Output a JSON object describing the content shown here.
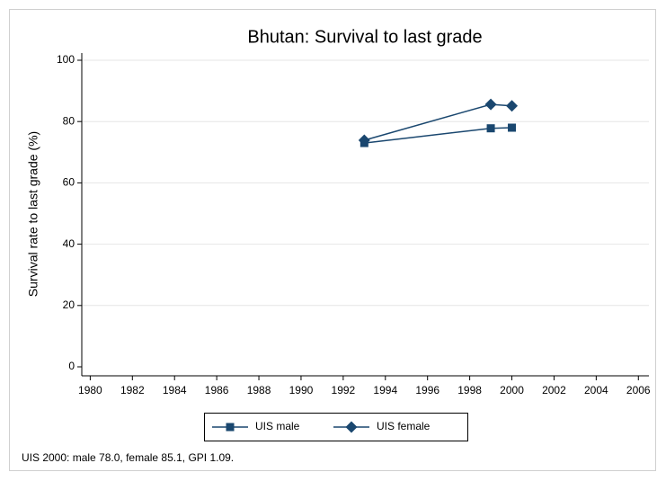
{
  "chart_data": {
    "type": "line",
    "title": "Bhutan: Survival to last grade",
    "y_label": "Survival rate to last grade (%)",
    "note": "UIS 2000: male 78.0, female 85.1, GPI 1.09.",
    "x": [
      1993,
      1999,
      2000
    ],
    "series": [
      {
        "name": "UIS male",
        "color": "#1a476f",
        "marker": "square",
        "values": [
          73.0,
          77.8,
          78.0
        ]
      },
      {
        "name": "UIS female",
        "color": "#1a476f",
        "marker": "diamond",
        "values": [
          73.9,
          85.6,
          85.1
        ]
      }
    ],
    "xlim": [
      1979.6,
      2006.5
    ],
    "xticks": [
      1980,
      1982,
      1984,
      1986,
      1988,
      1990,
      1992,
      1994,
      1996,
      1998,
      2000,
      2002,
      2004,
      2006
    ],
    "ylim": [
      0,
      100
    ],
    "yticks": [
      0,
      20,
      40,
      60,
      80,
      100
    ],
    "grid": true
  }
}
